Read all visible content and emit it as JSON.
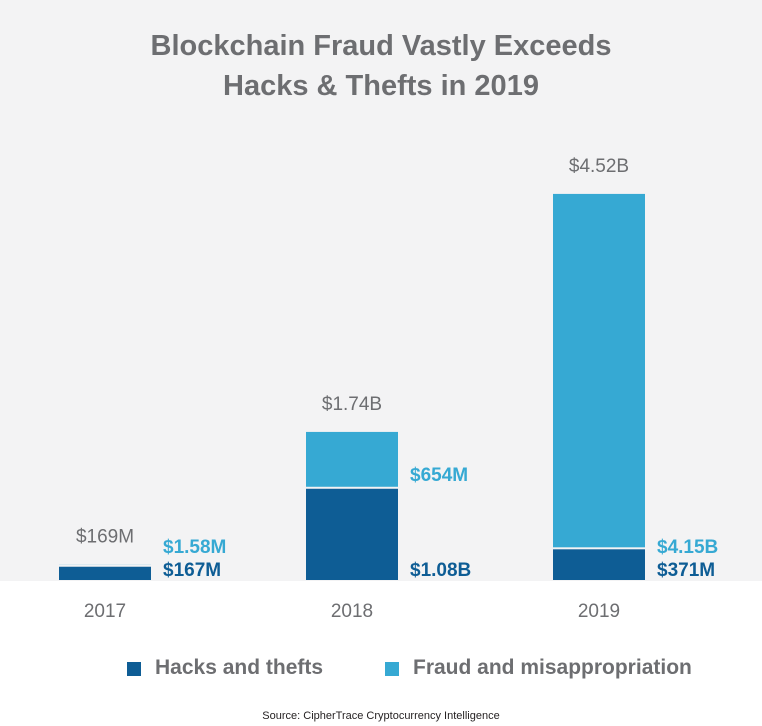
{
  "chart_data": {
    "type": "bar",
    "stacked": true,
    "title": "Blockchain Fraud Vastly Exceeds Hacks & Thefts in 2019",
    "title_lines": [
      "Blockchain Fraud Vastly Exceeds",
      "Hacks & Thefts in 2019"
    ],
    "categories": [
      "2017",
      "2018",
      "2019"
    ],
    "unit": "USD",
    "series": [
      {
        "name": "Hacks and thefts",
        "color": "#0e5d95",
        "values": [
          167000000,
          1080000000,
          371000000
        ],
        "labels": [
          "$167M",
          "$1.08B",
          "$371M"
        ]
      },
      {
        "name": "Fraud and misappropriation",
        "color": "#36a9d3",
        "values": [
          1580000,
          654000000,
          4150000000
        ],
        "labels": [
          "$1.58M",
          "$654M",
          "$4.15B"
        ]
      }
    ],
    "totals": {
      "values": [
        169000000,
        1740000000,
        4520000000
      ],
      "labels": [
        "$169M",
        "$1.74B",
        "$4.52B"
      ]
    },
    "ylim": [
      0,
      4520000000
    ],
    "grid": false,
    "legend_position": "bottom",
    "source": "Source: CipherTrace Cryptocurrency Intelligence",
    "colors": {
      "background_panel": "#f3f3f4",
      "text": "#6d6e71",
      "hacks": "#0e5d95",
      "fraud": "#36a9d3"
    }
  }
}
